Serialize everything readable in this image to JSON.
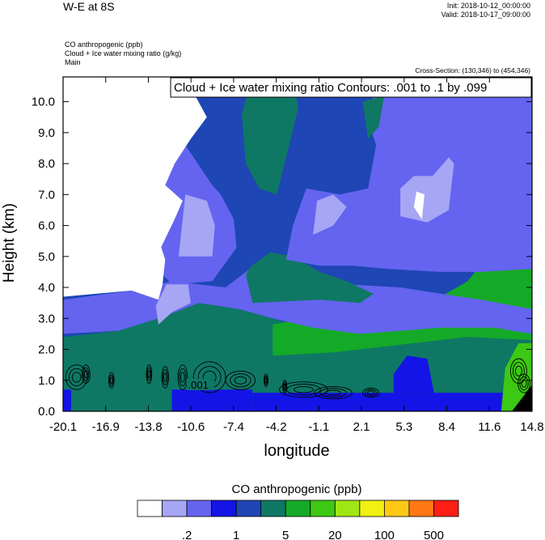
{
  "header": {
    "title": "W-E at 8S",
    "init": "Init: 2018-10-12_00:00:00",
    "valid": "Valid: 2018-10-17_09:00:00",
    "field_lines": [
      "CO anthropogenic   (ppb)",
      "Cloud + Ice water mixing ratio   (g/kg)",
      "Main"
    ],
    "cross_section": "Cross-Section: (130,346) to (454,346)"
  },
  "chart_data": {
    "type": "heatmap",
    "contour_label": "Cloud + Ice water mixing ratio Contours: .001 to .1 by .099",
    "contour_value_label": ".001",
    "ylabel": "Height (km)",
    "xlabel": "longitude",
    "x_ticks": [
      "-20.1",
      "-16.9",
      "-13.8",
      "-10.6",
      "-7.4",
      "-4.2",
      "-1.1",
      "2.1",
      "5.3",
      "8.4",
      "11.6",
      "14.8"
    ],
    "y_ticks": [
      "0.0",
      "1.0",
      "2.0",
      "3.0",
      "4.0",
      "5.0",
      "6.0",
      "7.0",
      "8.0",
      "9.0",
      "10.0"
    ],
    "xlim": [
      -20.1,
      14.8
    ],
    "ylim": [
      0,
      10.8
    ],
    "colorbar": {
      "title": "CO anthropogenic  (ppb)",
      "colors": [
        "#ffffff",
        "#a6a6f5",
        "#6464f0",
        "#1414e6",
        "#1e46b4",
        "#0f7864",
        "#14aa28",
        "#3cc814",
        "#a0e614",
        "#f0f014",
        "#ffc814",
        "#ff7814",
        "#ff1e14"
      ],
      "labels": [
        ".2",
        "1",
        "5",
        "20",
        "100",
        "500"
      ]
    },
    "regions": [
      {
        "level": 5,
        "poly": [
          [
            -20.1,
            0
          ],
          [
            14.8,
            0
          ],
          [
            14.8,
            2.3
          ],
          [
            12,
            2.6
          ],
          [
            8,
            2.6
          ],
          [
            5,
            2.4
          ],
          [
            2,
            2.4
          ],
          [
            -1.5,
            2.6
          ],
          [
            -4.5,
            3
          ],
          [
            -7,
            3.3
          ],
          [
            -10,
            3.5
          ],
          [
            -13,
            3
          ],
          [
            -16,
            2.6
          ],
          [
            -20.1,
            2.4
          ]
        ]
      },
      {
        "level": 3,
        "poly": [
          [
            -12,
            0
          ],
          [
            -6,
            0
          ],
          [
            -6,
            0.7
          ],
          [
            -12,
            0.7
          ]
        ]
      },
      {
        "level": 3,
        "poly": [
          [
            -6,
            0
          ],
          [
            14,
            0
          ],
          [
            14,
            0.6
          ],
          [
            -6,
            0.6
          ]
        ]
      },
      {
        "level": 3,
        "poly": [
          [
            4.5,
            0.6
          ],
          [
            7.5,
            0.6
          ],
          [
            7,
            1.7
          ],
          [
            5.5,
            1.8
          ],
          [
            4.5,
            1.2
          ]
        ]
      },
      {
        "level": 3,
        "poly": [
          [
            -20.1,
            0
          ],
          [
            -19.5,
            0
          ],
          [
            -19.5,
            0.7
          ],
          [
            -20.1,
            0.7
          ]
        ]
      },
      {
        "level": 6,
        "poly": [
          [
            0,
            3.6
          ],
          [
            5,
            3.8
          ],
          [
            8,
            3.7
          ],
          [
            10,
            4.2
          ],
          [
            11.5,
            5
          ],
          [
            14.8,
            5.3
          ],
          [
            14.8,
            3
          ],
          [
            13,
            3.2
          ],
          [
            11,
            3
          ],
          [
            8,
            3.1
          ],
          [
            5,
            3.1
          ],
          [
            2.5,
            3.3
          ],
          [
            0,
            3.3
          ]
        ]
      },
      {
        "level": 6,
        "poly": [
          [
            -4.5,
            1.8
          ],
          [
            0,
            1.9
          ],
          [
            4,
            2.1
          ],
          [
            8,
            2.3
          ],
          [
            10,
            2.4
          ],
          [
            14.8,
            2.3
          ],
          [
            14.8,
            2.8
          ],
          [
            11,
            2.9
          ],
          [
            7,
            2.8
          ],
          [
            3,
            3
          ],
          [
            -1,
            3.1
          ],
          [
            -4.5,
            2.8
          ]
        ]
      },
      {
        "level": 6,
        "poly": [
          [
            -3,
            2.6
          ],
          [
            3,
            2.6
          ],
          [
            5,
            2.9
          ],
          [
            3,
            3.2
          ],
          [
            -1,
            3.3
          ],
          [
            -3,
            3
          ]
        ]
      },
      {
        "level": 7,
        "poly": [
          [
            12.5,
            0
          ],
          [
            14.8,
            0
          ],
          [
            14.8,
            2.2
          ],
          [
            13.8,
            2.2
          ],
          [
            12.8,
            1.4
          ]
        ]
      },
      {
        "level": 2,
        "poly": [
          [
            -20.1,
            2.5
          ],
          [
            -16,
            2.6
          ],
          [
            -13,
            3
          ],
          [
            -10,
            3.5
          ],
          [
            -7,
            3.3
          ],
          [
            -4.5,
            3
          ],
          [
            -1.5,
            2.7
          ],
          [
            2,
            2.5
          ],
          [
            5,
            2.6
          ],
          [
            8,
            2.7
          ],
          [
            12,
            2.7
          ],
          [
            14.8,
            2.5
          ],
          [
            14.8,
            3.3
          ],
          [
            11,
            3.6
          ],
          [
            8,
            3.8
          ],
          [
            5,
            4
          ],
          [
            1,
            4.1
          ],
          [
            -1,
            4.3
          ],
          [
            -3,
            4.8
          ],
          [
            -5,
            5
          ],
          [
            -8,
            4
          ],
          [
            -12,
            4.2
          ],
          [
            -15,
            3.9
          ],
          [
            -20.1,
            3.6
          ]
        ]
      },
      {
        "level": 5,
        "poly": [
          [
            -6,
            3.5
          ],
          [
            -1,
            3.6
          ],
          [
            2,
            3.5
          ],
          [
            3,
            3.8
          ],
          [
            1,
            4.2
          ],
          [
            -1,
            4.5
          ],
          [
            -3,
            5
          ],
          [
            -5.5,
            5.2
          ],
          [
            -6.5,
            4.4
          ]
        ]
      },
      {
        "level": 2,
        "poly": [
          [
            -12,
            4.1
          ],
          [
            -9,
            4.2
          ],
          [
            -7,
            5.4
          ],
          [
            -7.5,
            6.6
          ],
          [
            -9,
            7.3
          ],
          [
            -11,
            8.6
          ],
          [
            -13,
            9
          ],
          [
            -14,
            8
          ],
          [
            -14.5,
            6.5
          ],
          [
            -14,
            5
          ]
        ]
      },
      {
        "level": 4,
        "poly": [
          [
            -7,
            4.4
          ],
          [
            -4.5,
            5.2
          ],
          [
            -3.5,
            6
          ],
          [
            -3.6,
            8
          ],
          [
            -3,
            9.6
          ],
          [
            -4,
            10.4
          ],
          [
            -7,
            10.6
          ],
          [
            -8.8,
            9.8
          ],
          [
            -9.5,
            8.6
          ],
          [
            -8.6,
            7.2
          ],
          [
            -7.4,
            6.2
          ]
        ]
      },
      {
        "level": 2,
        "poly": [
          [
            -3.5,
            4.9
          ],
          [
            -1,
            4.7
          ],
          [
            1.5,
            4.7
          ],
          [
            4,
            4.6
          ],
          [
            8,
            4.5
          ],
          [
            11,
            4.5
          ],
          [
            14.8,
            4.6
          ],
          [
            14.8,
            10.8
          ],
          [
            5,
            10.8
          ],
          [
            3.2,
            10.5
          ],
          [
            2.5,
            9.5
          ],
          [
            3.2,
            8.6
          ],
          [
            2.6,
            7.2
          ],
          [
            0.5,
            7
          ],
          [
            -2,
            7.2
          ],
          [
            -3,
            6
          ]
        ]
      },
      {
        "level": 5,
        "poly": [
          [
            -6.5,
            8
          ],
          [
            -5.5,
            7.2
          ],
          [
            -4.2,
            7
          ],
          [
            -3.5,
            8.2
          ],
          [
            -2.6,
            9.8
          ],
          [
            -3,
            10.8
          ],
          [
            -6,
            10.8
          ],
          [
            -6.8,
            9.6
          ]
        ]
      },
      {
        "level": 5,
        "poly": [
          [
            2.2,
            10
          ],
          [
            3.8,
            10.2
          ],
          [
            3.4,
            9.2
          ],
          [
            2.6,
            8.8
          ]
        ]
      },
      {
        "level": 1,
        "poly": [
          [
            -1.5,
            5.7
          ],
          [
            0,
            6
          ],
          [
            1,
            6.6
          ],
          [
            0,
            7
          ],
          [
            -1.2,
            6.8
          ]
        ]
      },
      {
        "level": 1,
        "poly": [
          [
            5,
            6.3
          ],
          [
            7,
            6.1
          ],
          [
            8.6,
            6.5
          ],
          [
            8.8,
            7.3
          ],
          [
            9,
            8
          ],
          [
            8.6,
            8.2
          ],
          [
            7.4,
            7.6
          ],
          [
            6,
            7.6
          ],
          [
            5,
            7.2
          ]
        ]
      },
      {
        "level": 1,
        "poly": [
          [
            -11.5,
            5
          ],
          [
            -9,
            5
          ],
          [
            -8.8,
            6
          ],
          [
            -9.4,
            6.8
          ],
          [
            -11,
            7
          ]
        ]
      },
      {
        "level": 1,
        "poly": [
          [
            -13,
            2.8
          ],
          [
            -12,
            3.2
          ],
          [
            -10.6,
            3.5
          ],
          [
            -10.8,
            4.1
          ],
          [
            -12.4,
            4.1
          ],
          [
            -13.2,
            3.4
          ]
        ]
      },
      {
        "level": 0,
        "poly": [
          [
            -20.1,
            10.8
          ],
          [
            -10.8,
            10.8
          ],
          [
            -10.4,
            10.3
          ],
          [
            -9.4,
            9.5
          ],
          [
            -10.6,
            8.8
          ],
          [
            -11.8,
            8
          ],
          [
            -12.5,
            7.3
          ],
          [
            -11.2,
            6.8
          ],
          [
            -11.8,
            6.2
          ],
          [
            -12.8,
            5.3
          ],
          [
            -12.5,
            4.9
          ],
          [
            -12.7,
            4.1
          ],
          [
            -13,
            3.6
          ],
          [
            -15,
            3.9
          ],
          [
            -20.1,
            3.7
          ]
        ]
      },
      {
        "level": 0,
        "poly": [
          [
            6,
            6.6
          ],
          [
            6.6,
            6.2
          ],
          [
            6.8,
            7
          ],
          [
            6.2,
            7.1
          ]
        ]
      }
    ],
    "contours": [
      {
        "lon": -19.1,
        "h": 1.1,
        "w": 1.6,
        "hh": 0.8
      },
      {
        "lon": -18.4,
        "h": 1.2,
        "w": 0.6,
        "hh": 0.6
      },
      {
        "lon": -16.5,
        "h": 1.0,
        "w": 0.4,
        "hh": 0.5
      },
      {
        "lon": -13.7,
        "h": 1.2,
        "w": 0.4,
        "hh": 0.6
      },
      {
        "lon": -12.5,
        "h": 1.1,
        "w": 0.5,
        "hh": 0.7
      },
      {
        "lon": -11.2,
        "h": 1.1,
        "w": 0.7,
        "hh": 0.8
      },
      {
        "lon": -9.2,
        "h": 1.1,
        "w": 2.4,
        "hh": 1.0
      },
      {
        "lon": -6.9,
        "h": 1.0,
        "w": 2.2,
        "hh": 0.6
      },
      {
        "lon": -5.0,
        "h": 1.0,
        "w": 0.3,
        "hh": 0.4
      },
      {
        "lon": -3.6,
        "h": 0.8,
        "w": 0.3,
        "hh": 0.4
      },
      {
        "lon": -2.2,
        "h": 0.7,
        "w": 3.6,
        "hh": 0.5
      },
      {
        "lon": 0.0,
        "h": 0.6,
        "w": 2.8,
        "hh": 0.4
      },
      {
        "lon": 2.8,
        "h": 0.6,
        "w": 1.2,
        "hh": 0.3
      },
      {
        "lon": 13.8,
        "h": 1.3,
        "w": 1.2,
        "hh": 0.8
      },
      {
        "lon": 14.2,
        "h": 0.9,
        "w": 0.9,
        "hh": 0.6
      }
    ]
  }
}
